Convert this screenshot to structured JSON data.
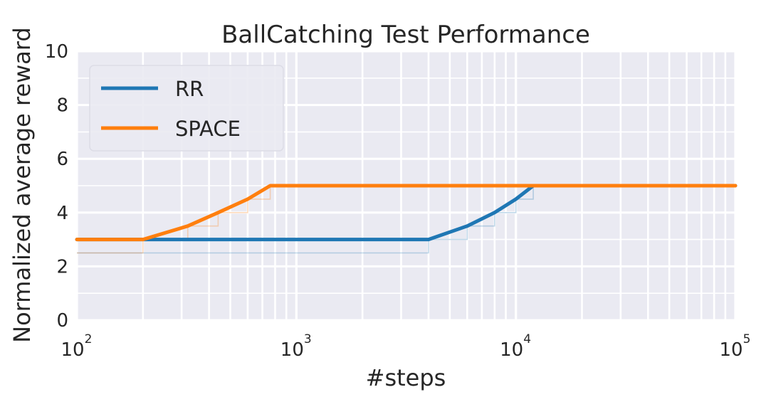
{
  "chart_data": {
    "type": "line",
    "title": "BallCatching Test Performance",
    "xlabel": "#steps",
    "ylabel": "Normalized average reward",
    "xscale": "log",
    "xlim": [
      100,
      100000
    ],
    "ylim": [
      0,
      10
    ],
    "grid": true,
    "legend": "upper-left",
    "xticks": [
      {
        "base": "10",
        "exp": "2",
        "value": 100
      },
      {
        "base": "10",
        "exp": "3",
        "value": 1000
      },
      {
        "base": "10",
        "exp": "4",
        "value": 10000
      },
      {
        "base": "10",
        "exp": "5",
        "value": 100000
      }
    ],
    "yticks": [
      "0",
      "2",
      "4",
      "6",
      "8",
      "10"
    ],
    "series": [
      {
        "name": "RR",
        "color": "#1f77b4",
        "x": [
          100,
          200,
          4000,
          6000,
          8000,
          10000,
          12000,
          100000
        ],
        "y": [
          3.0,
          3.0,
          3.0,
          3.5,
          4.0,
          4.5,
          5.0,
          5.0
        ],
        "step_x": [
          100,
          4000,
          6000,
          8000,
          10000,
          12000
        ],
        "step_y": [
          2.5,
          3.0,
          3.5,
          4.0,
          4.5,
          5.0
        ]
      },
      {
        "name": "SPACE",
        "color": "#ff7f0e",
        "x": [
          100,
          200,
          320,
          440,
          600,
          760,
          100000
        ],
        "y": [
          3.0,
          3.0,
          3.5,
          4.0,
          4.5,
          5.0,
          5.0
        ],
        "step_x": [
          100,
          200,
          320,
          440,
          600,
          760
        ],
        "step_y": [
          2.5,
          3.0,
          3.5,
          4.0,
          4.5,
          5.0
        ]
      }
    ]
  }
}
